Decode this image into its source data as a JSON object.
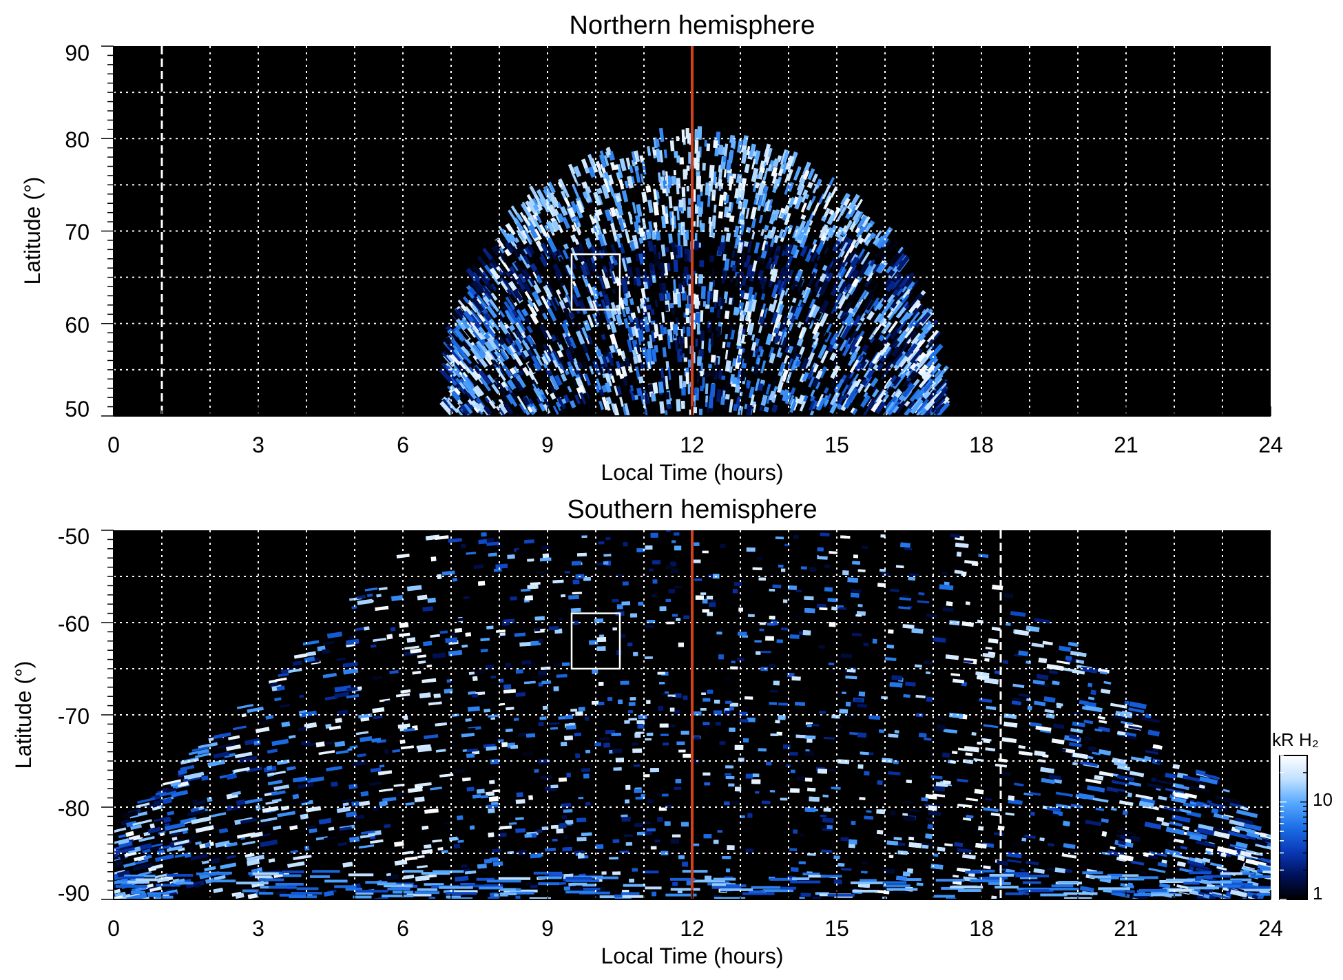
{
  "chart_data": [
    {
      "type": "heatmap",
      "title": "Northern hemisphere",
      "xlabel": "Local Time (hours)",
      "ylabel": "Latitude (°)",
      "xlim": [
        0,
        24
      ],
      "ylim": [
        50,
        90
      ],
      "x_ticks": [
        0,
        3,
        6,
        9,
        12,
        15,
        18,
        21,
        24
      ],
      "x_tick_labels": [
        "0",
        "3",
        "6",
        "9",
        "12",
        "15",
        "18",
        "21",
        "24"
      ],
      "y_ticks": [
        50,
        60,
        70,
        80,
        90
      ],
      "y_tick_labels": [
        "50",
        "60",
        "70",
        "80",
        "90"
      ],
      "grid": true,
      "grid_x_step": 1,
      "grid_y_step": 5,
      "background_color": "#000000",
      "coverage_local_time_range": [
        7,
        17.2
      ],
      "coverage_max_latitude": 80,
      "auroral_oval_band_latitude": [
        63,
        68
      ],
      "noon_line_local_time": 12,
      "noon_line_color": "#d2401c",
      "dashed_line_local_time": 1,
      "highlight_box": {
        "local_time": [
          9.5,
          10.5
        ],
        "latitude": [
          61.5,
          67.5
        ]
      }
    },
    {
      "type": "heatmap",
      "title": "Southern hemisphere",
      "xlabel": "Local Time (hours)",
      "ylabel": "Latitude (°)",
      "xlim": [
        0,
        24
      ],
      "ylim": [
        -90,
        -50
      ],
      "x_ticks": [
        0,
        3,
        6,
        9,
        12,
        15,
        18,
        21,
        24
      ],
      "x_tick_labels": [
        "0",
        "3",
        "6",
        "9",
        "12",
        "15",
        "18",
        "21",
        "24"
      ],
      "y_ticks": [
        -90,
        -80,
        -70,
        -60,
        -50
      ],
      "y_tick_labels": [
        "-90",
        "-80",
        "-70",
        "-60",
        "-50"
      ],
      "grid": true,
      "grid_x_step": 1,
      "grid_y_step": 5,
      "background_color": "#000000",
      "coverage_local_time_range": [
        0,
        24
      ],
      "bright_arcs_local_time": [
        6.5,
        17.8
      ],
      "bright_patch": {
        "local_time": [
          17.5,
          19.5
        ],
        "latitude": [
          -76,
          -72
        ]
      },
      "noon_line_local_time": 12,
      "noon_line_color": "#d2401c",
      "dashed_line_local_time": 18.4,
      "highlight_box": {
        "local_time": [
          9.5,
          10.5
        ],
        "latitude": [
          -65,
          -59
        ]
      }
    }
  ],
  "colorbar": {
    "label": "kR H₂",
    "tick_labels": [
      "1",
      "10"
    ],
    "tick_values": [
      1,
      10
    ],
    "range": [
      1,
      30
    ],
    "scale": "log",
    "colormap": [
      "#000000",
      "#00115a",
      "#0a3ab8",
      "#1c6fe6",
      "#55a8ff",
      "#bfe0ff",
      "#ffffff"
    ]
  }
}
